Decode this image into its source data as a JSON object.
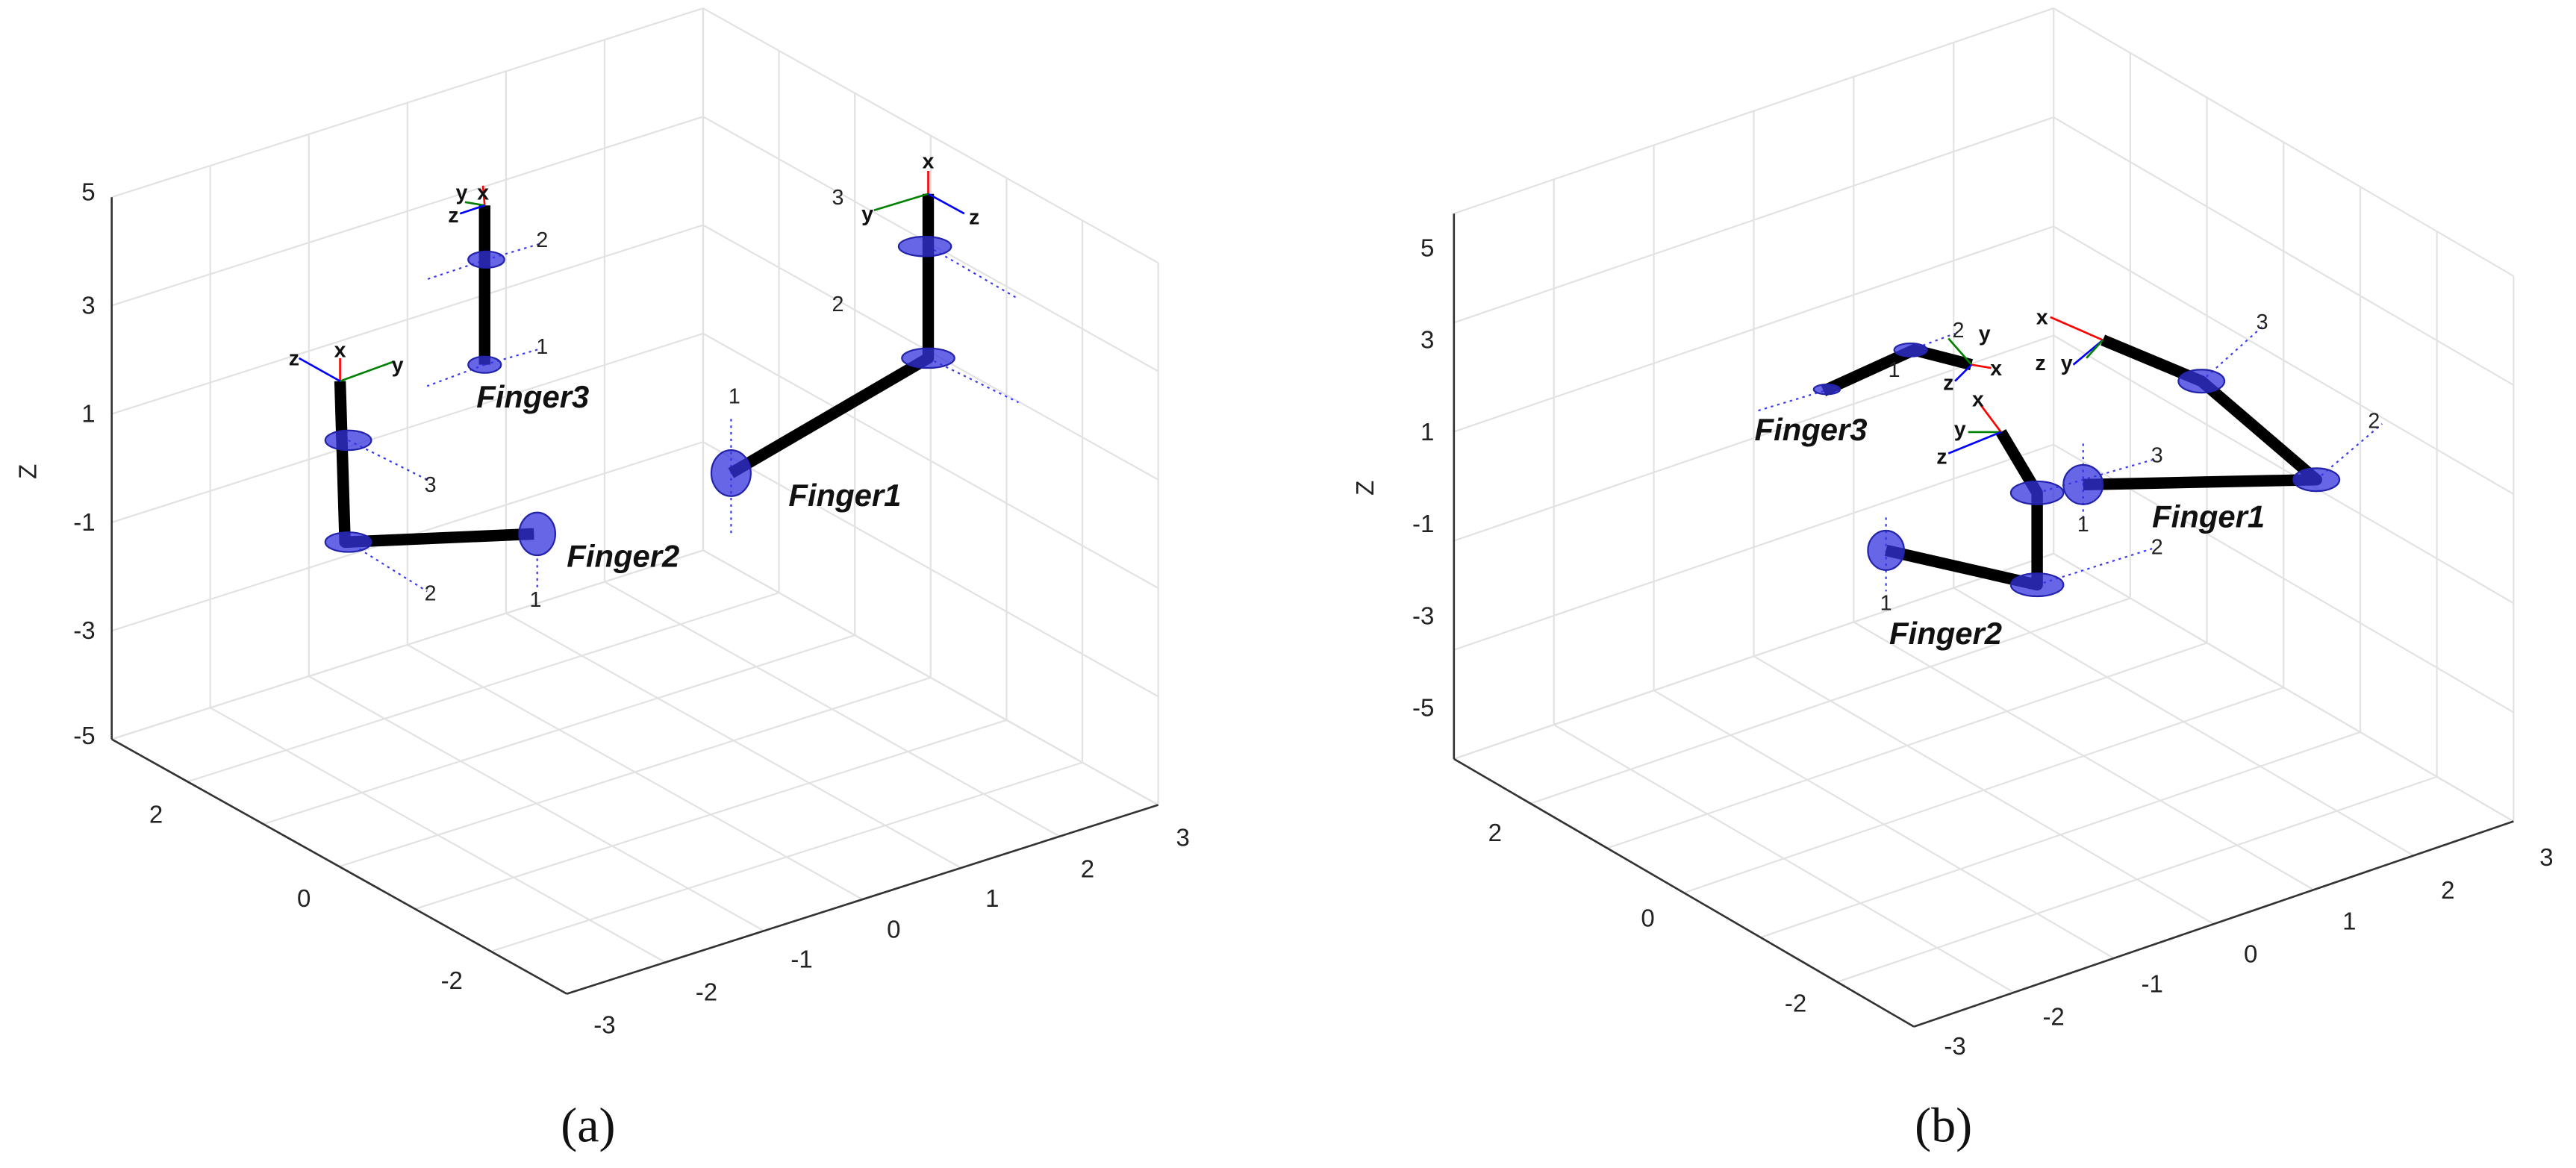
{
  "panels": [
    {
      "caption": "(a)",
      "z_label": "Z",
      "z_ticks": [
        "5",
        "3",
        "1",
        "-1",
        "-3",
        "-5"
      ],
      "y_ticks": [
        "2",
        "0",
        "-2"
      ],
      "x_ticks": [
        "-3",
        "-2",
        "-1",
        "0",
        "1",
        "2",
        "3"
      ],
      "finger_labels": [
        "Finger1",
        "Finger2",
        "Finger3"
      ],
      "joint_labels": [
        "1",
        "2",
        "3",
        "1",
        "2",
        "3",
        "1",
        "2"
      ],
      "frame_labels": [
        "x",
        "y",
        "z",
        "z",
        "x",
        "y",
        "y",
        "x",
        "z"
      ]
    },
    {
      "caption": "(b)",
      "z_label": "Z",
      "z_ticks": [
        "5",
        "3",
        "1",
        "-1",
        "-3",
        "-5"
      ],
      "y_ticks": [
        "2",
        "0",
        "-2"
      ],
      "x_ticks": [
        "-3",
        "-2",
        "-1",
        "0",
        "1",
        "2",
        "3"
      ],
      "finger_labels": [
        "Finger1",
        "Finger2",
        "Finger3"
      ],
      "joint_labels": [
        "1",
        "2",
        "3",
        "1",
        "2",
        "3",
        "1",
        "2"
      ],
      "frame_labels": [
        "x",
        "z",
        "y",
        "x",
        "y",
        "z",
        "y",
        "x",
        "z"
      ]
    }
  ]
}
